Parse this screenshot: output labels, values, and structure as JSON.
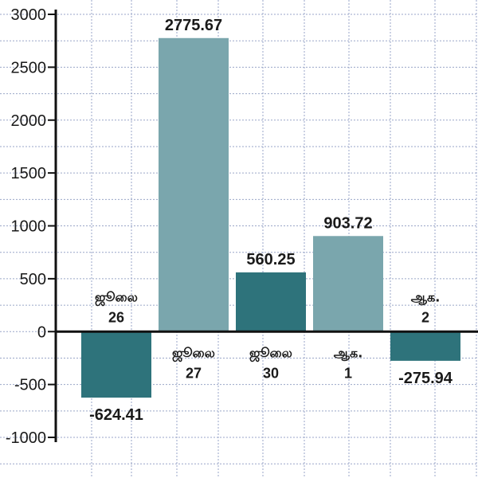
{
  "chart_data": {
    "type": "bar",
    "title": "",
    "xlabel": "",
    "ylabel": "",
    "ylim": [
      -1000,
      3000
    ],
    "yticks": [
      3000,
      2500,
      2000,
      1500,
      1000,
      500,
      0,
      -500,
      -1000
    ],
    "grid": true,
    "categories": [
      {
        "line1": "ஜூலை",
        "line2": "26"
      },
      {
        "line1": "ஜூலை",
        "line2": "27"
      },
      {
        "line1": "ஜூலை",
        "line2": "30"
      },
      {
        "line1": "ஆக.",
        "line2": "1"
      },
      {
        "line1": "ஆக.",
        "line2": "2"
      }
    ],
    "values": [
      -624.41,
      2775.67,
      560.25,
      903.72,
      -275.94
    ],
    "value_labels": [
      "-624.41",
      "2775.67",
      "560.25",
      "903.72",
      "-275.94"
    ],
    "bar_colors": [
      "#2e737b",
      "#7aa6ad",
      "#2e737b",
      "#7aa6ad",
      "#2e737b"
    ],
    "grid_color": "#9aa6c8",
    "axis_color": "#111111"
  }
}
